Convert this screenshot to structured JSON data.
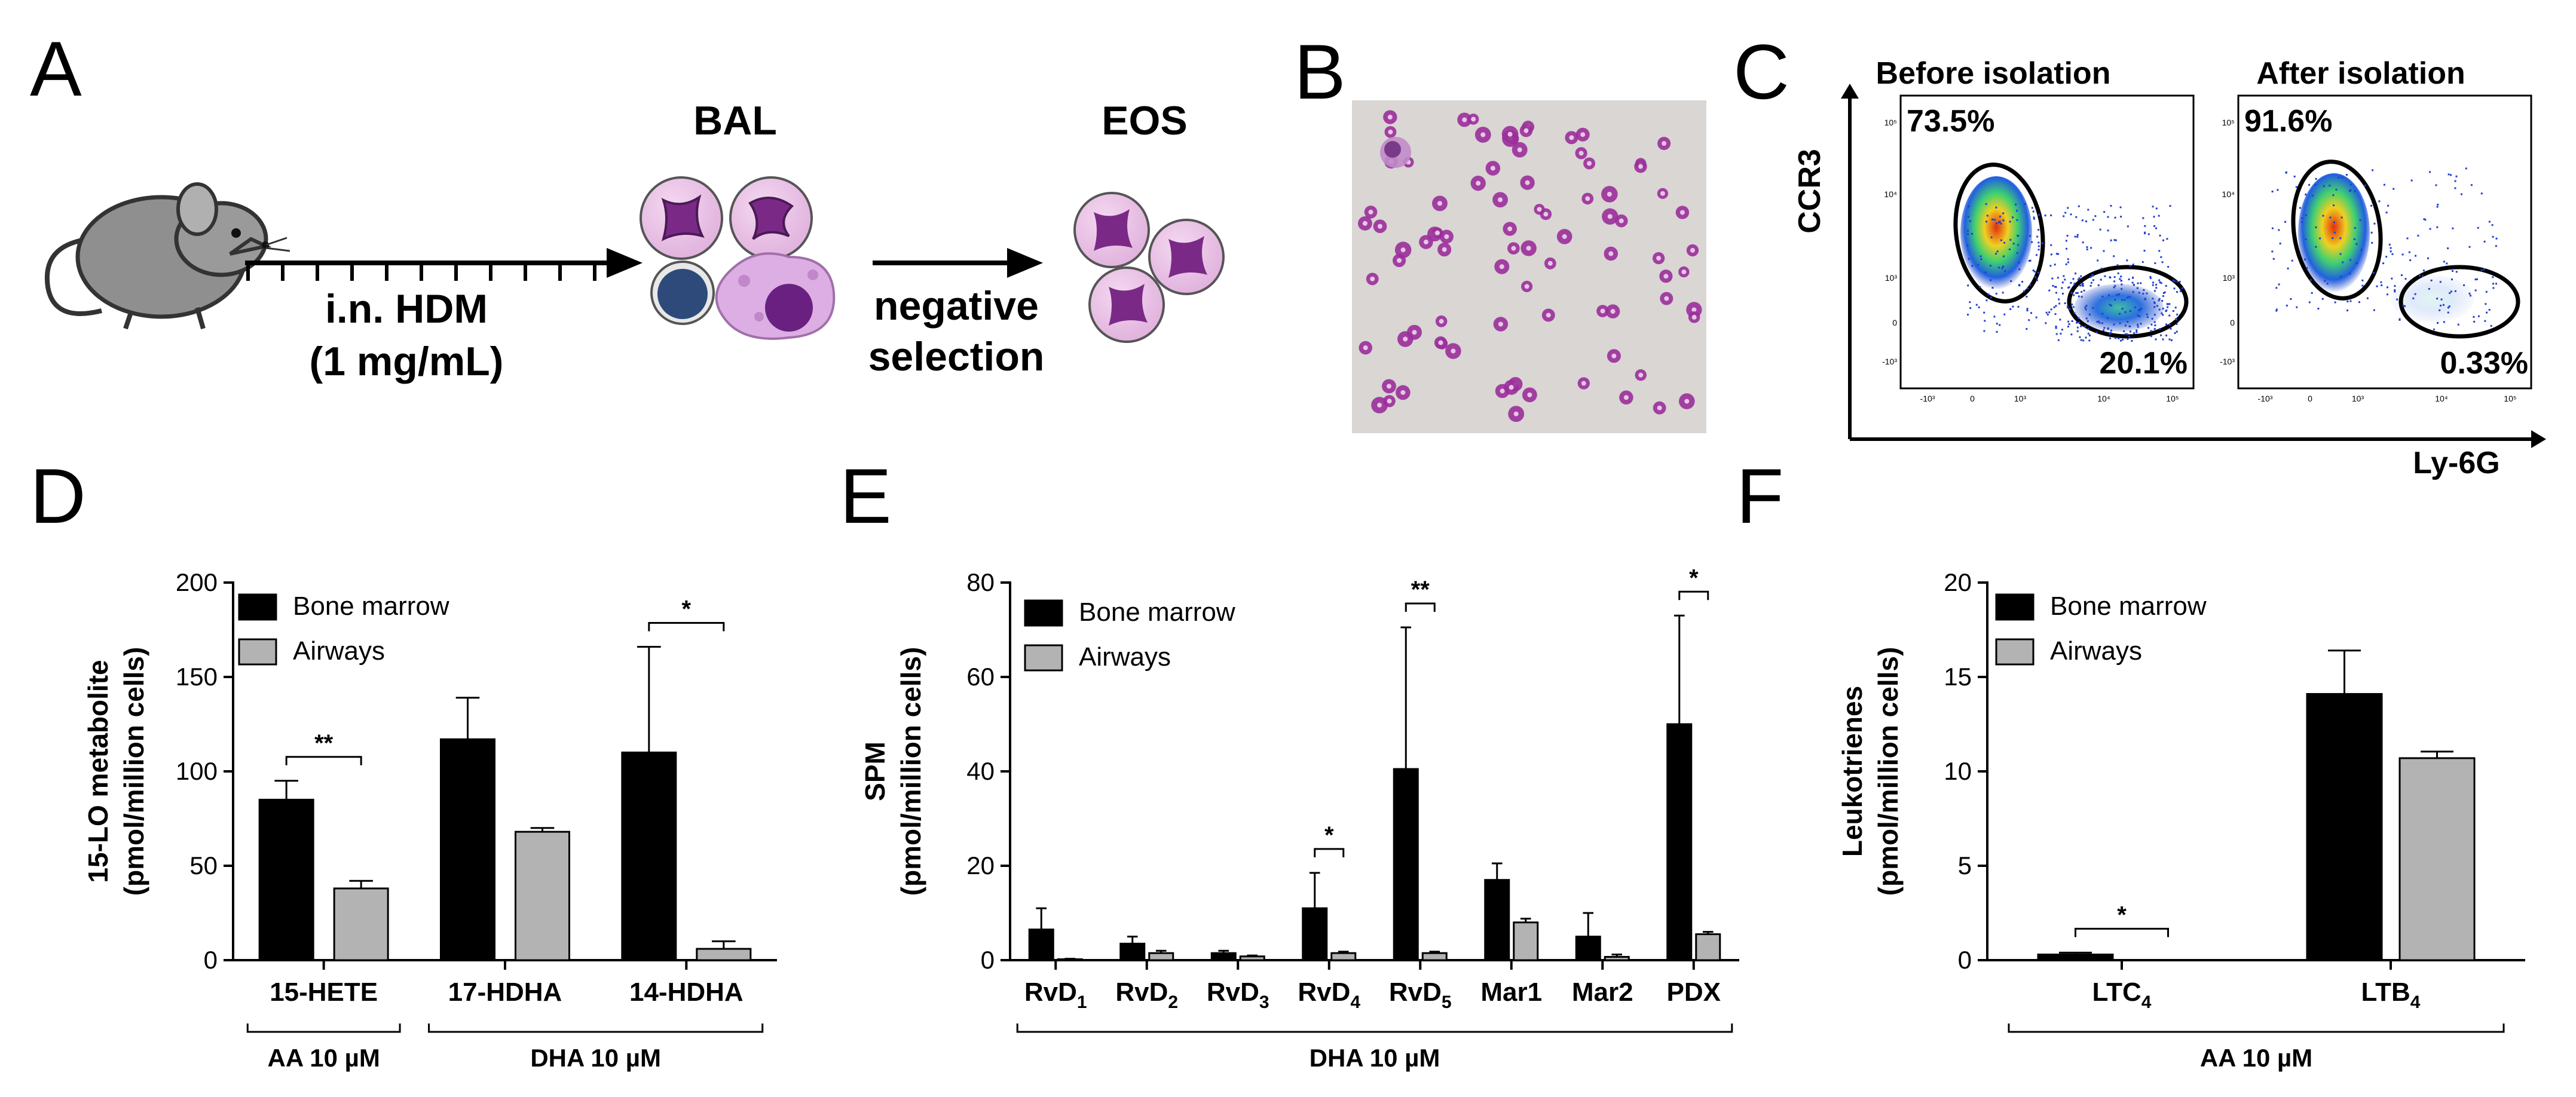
{
  "panels": {
    "A": {
      "letter": "A",
      "bal_label": "BAL",
      "eos_label": "EOS",
      "treatment_line1": "i.n. HDM",
      "treatment_line2": "(1 mg/mL)",
      "selection_line1": "negative",
      "selection_line2": "selection"
    },
    "B": {
      "letter": "B"
    },
    "C": {
      "letter": "C",
      "plots": [
        {
          "title": "Before isolation",
          "gate_upper": "73.5%",
          "gate_lower": "20.1%"
        },
        {
          "title": "After isolation",
          "gate_upper": "91.6%",
          "gate_lower": "0.33%"
        }
      ],
      "y_axis_label": "CCR3",
      "x_axis_label": "Ly-6G",
      "y_ticks": [
        "10⁵",
        "10⁴",
        "10³",
        "0",
        "-10³"
      ],
      "x_ticks": [
        "-10³",
        "0",
        "10³",
        "10⁴",
        "10⁵"
      ]
    },
    "D": {
      "letter": "D"
    },
    "E": {
      "letter": "E"
    },
    "F": {
      "letter": "F"
    }
  },
  "colors": {
    "bone_marrow": "#000000",
    "airways": "#b3b3b3",
    "stain": "#9a2f9a"
  },
  "chart_data": [
    {
      "panel": "D",
      "type": "bar",
      "ylabel_line1": "15-LO metabolite",
      "ylabel_line2": "(pmol/million cells)",
      "ylim": [
        0,
        200
      ],
      "yticks": [
        0,
        50,
        100,
        150,
        200
      ],
      "categories": [
        "15-HETE",
        "17-HDHA",
        "14-HDHA"
      ],
      "series": [
        {
          "name": "Bone marrow",
          "values": [
            85,
            117,
            110
          ],
          "errors": [
            10,
            22,
            56
          ]
        },
        {
          "name": "Airways",
          "values": [
            38,
            68,
            6
          ],
          "errors": [
            4,
            2,
            4
          ]
        }
      ],
      "significance": [
        {
          "category": 0,
          "label": "**"
        },
        {
          "category": 2,
          "label": "*"
        }
      ],
      "groups": [
        {
          "label": "AA 10 µM",
          "from": 0,
          "to": 0
        },
        {
          "label": "DHA 10 µM",
          "from": 1,
          "to": 2
        }
      ],
      "legend": "top-left"
    },
    {
      "panel": "E",
      "type": "bar",
      "ylabel_line1": "SPM",
      "ylabel_line2": "(pmol/million cells)",
      "ylim": [
        0,
        80
      ],
      "yticks": [
        0,
        20,
        40,
        60,
        80
      ],
      "categories": [
        {
          "base": "RvD",
          "sub": "1"
        },
        {
          "base": "RvD",
          "sub": "2"
        },
        {
          "base": "RvD",
          "sub": "3"
        },
        {
          "base": "RvD",
          "sub": "4"
        },
        {
          "base": "RvD",
          "sub": "5"
        },
        {
          "base": "Mar1",
          "sub": ""
        },
        {
          "base": "Mar2",
          "sub": ""
        },
        {
          "base": "PDX",
          "sub": ""
        }
      ],
      "series": [
        {
          "name": "Bone marrow",
          "values": [
            6.5,
            3.5,
            1.5,
            11,
            40.5,
            17,
            5,
            50
          ],
          "errors": [
            4.5,
            1.5,
            0.5,
            7.5,
            30,
            3.5,
            5,
            23
          ]
        },
        {
          "name": "Airways",
          "values": [
            0.2,
            1.5,
            0.8,
            1.5,
            1.5,
            8,
            0.7,
            5.5
          ],
          "errors": [
            0.1,
            0.5,
            0.2,
            0.3,
            0.3,
            0.8,
            0.5,
            0.5
          ]
        }
      ],
      "significance": [
        {
          "category": 3,
          "label": "*"
        },
        {
          "category": 4,
          "label": "**"
        },
        {
          "category": 7,
          "label": "*"
        }
      ],
      "groups": [
        {
          "label": "DHA 10 µM",
          "from": 0,
          "to": 7
        }
      ],
      "legend": "top-left"
    },
    {
      "panel": "F",
      "type": "bar",
      "ylabel_line1": "Leukotrienes",
      "ylabel_line2": "(pmol/million cells)",
      "ylim": [
        0,
        20
      ],
      "yticks": [
        0,
        5,
        10,
        15,
        20
      ],
      "categories": [
        {
          "base": "LTC",
          "sub": "4"
        },
        {
          "base": "LTB",
          "sub": "4"
        }
      ],
      "series": [
        {
          "name": "Bone marrow",
          "values": [
            0.3,
            14.1
          ],
          "errors": [
            0.1,
            2.3
          ]
        },
        {
          "name": "Airways",
          "values": [
            0,
            10.7
          ],
          "errors": [
            0,
            0.35
          ]
        }
      ],
      "significance": [
        {
          "category": 0,
          "label": "*"
        }
      ],
      "groups": [
        {
          "label": "AA 10 µM",
          "from": 0,
          "to": 1
        }
      ],
      "legend": "top-left"
    }
  ]
}
